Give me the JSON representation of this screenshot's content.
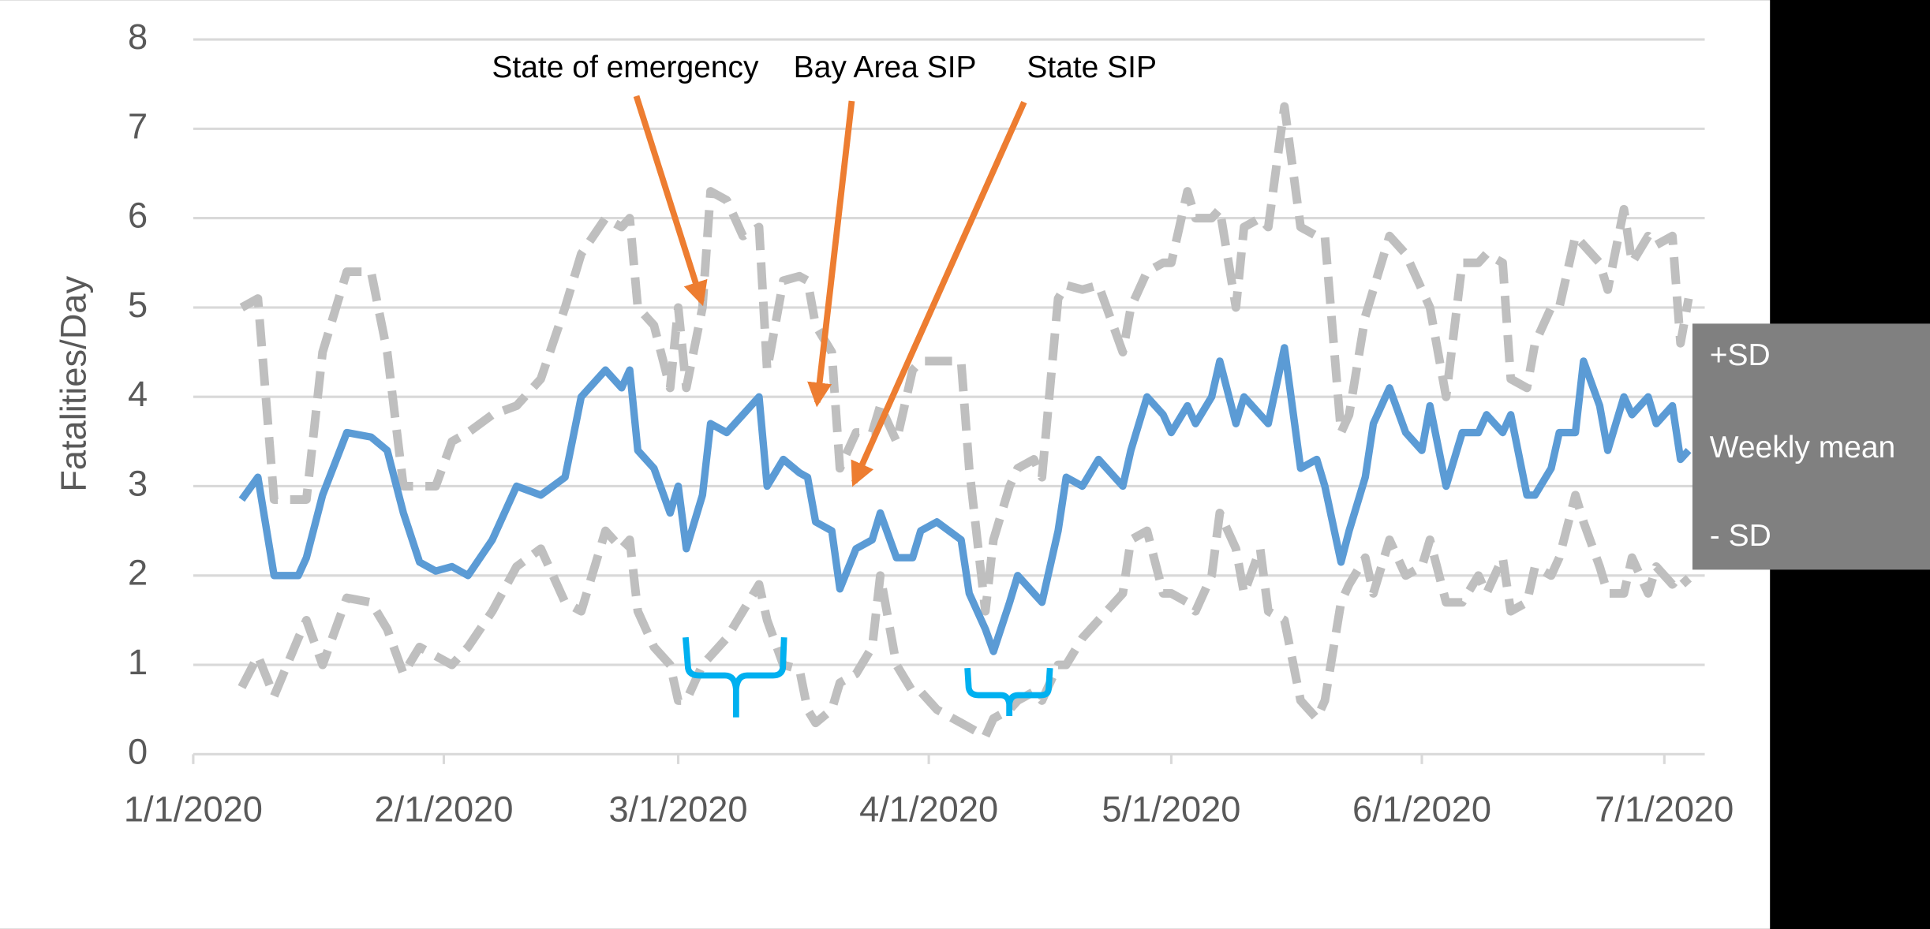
{
  "chart_data": {
    "type": "line",
    "y_label": "Fatalities/Day",
    "annotations": [
      "State of emergency",
      "Bay Area SIP",
      "State SIP"
    ],
    "xlim": [
      "2020-01-01",
      "2020-07-06"
    ],
    "xticks": [
      {
        "value": "2020-01-01",
        "label": "1/1/2020"
      },
      {
        "value": "2020-02-01",
        "label": "2/1/2020"
      },
      {
        "value": "2020-03-01",
        "label": "3/1/2020"
      },
      {
        "value": "2020-04-01",
        "label": "4/1/2020"
      },
      {
        "value": "2020-05-01",
        "label": "5/1/2020"
      },
      {
        "value": "2020-06-01",
        "label": "6/1/2020"
      },
      {
        "value": "2020-07-01",
        "label": "7/1/2020"
      }
    ],
    "ylim": [
      0,
      8
    ],
    "yticks": [
      0,
      1,
      2,
      3,
      4,
      5,
      6,
      7,
      8
    ],
    "grid": true,
    "legend": "right",
    "x": [
      "2020-01-07",
      "2020-01-09",
      "2020-01-11",
      "2020-01-14",
      "2020-01-15",
      "2020-01-17",
      "2020-01-20",
      "2020-01-23",
      "2020-01-25",
      "2020-01-27",
      "2020-01-29",
      "2020-01-31",
      "2020-02-02",
      "2020-02-04",
      "2020-02-07",
      "2020-02-10",
      "2020-02-13",
      "2020-02-16",
      "2020-02-18",
      "2020-02-21",
      "2020-02-23",
      "2020-02-24",
      "2020-02-25",
      "2020-02-27",
      "2020-02-29",
      "2020-03-01",
      "2020-03-02",
      "2020-03-04",
      "2020-03-05",
      "2020-03-07",
      "2020-03-09",
      "2020-03-11",
      "2020-03-12",
      "2020-03-14",
      "2020-03-16",
      "2020-03-17",
      "2020-03-18",
      "2020-03-20",
      "2020-03-21",
      "2020-03-23",
      "2020-03-25",
      "2020-03-26",
      "2020-03-28",
      "2020-03-30",
      "2020-03-31",
      "2020-04-02",
      "2020-04-05",
      "2020-04-06",
      "2020-04-08",
      "2020-04-09",
      "2020-04-11",
      "2020-04-12",
      "2020-04-14",
      "2020-04-15",
      "2020-04-17",
      "2020-04-18",
      "2020-04-20",
      "2020-04-22",
      "2020-04-25",
      "2020-04-26",
      "2020-04-28",
      "2020-04-30",
      "2020-05-01",
      "2020-05-03",
      "2020-05-04",
      "2020-05-06",
      "2020-05-07",
      "2020-05-09",
      "2020-05-10",
      "2020-05-12",
      "2020-05-13",
      "2020-05-15",
      "2020-05-17",
      "2020-05-19",
      "2020-05-20",
      "2020-05-22",
      "2020-05-23",
      "2020-05-25",
      "2020-05-26",
      "2020-05-28",
      "2020-05-30",
      "2020-06-01",
      "2020-06-02",
      "2020-06-04",
      "2020-06-06",
      "2020-06-08",
      "2020-06-09",
      "2020-06-11",
      "2020-06-12",
      "2020-06-14",
      "2020-06-15",
      "2020-06-17",
      "2020-06-18",
      "2020-06-20",
      "2020-06-21",
      "2020-06-23",
      "2020-06-24",
      "2020-06-26",
      "2020-06-27",
      "2020-06-29",
      "2020-06-30",
      "2020-07-02",
      "2020-07-03",
      "2020-07-04"
    ],
    "series": [
      {
        "name": "+SD",
        "color": "#bfbfbf",
        "dashed": true,
        "values": [
          5.0,
          5.1,
          2.85,
          2.85,
          2.85,
          4.5,
          5.4,
          5.4,
          4.5,
          3.0,
          3.0,
          3.0,
          3.5,
          3.6,
          3.8,
          3.9,
          4.2,
          5.0,
          5.6,
          6.0,
          5.9,
          6.0,
          5.0,
          4.8,
          4.1,
          5.0,
          4.1,
          5.0,
          6.3,
          6.2,
          5.8,
          5.9,
          4.3,
          5.3,
          5.35,
          5.3,
          4.8,
          4.5,
          3.2,
          3.6,
          3.6,
          3.9,
          3.5,
          4.3,
          4.4,
          4.4,
          4.4,
          3.2,
          1.6,
          2.4,
          3.0,
          3.2,
          3.3,
          3.1,
          5.1,
          5.25,
          5.2,
          5.25,
          4.5,
          5.0,
          5.4,
          5.5,
          5.5,
          6.3,
          6.0,
          6.0,
          6.1,
          5.0,
          5.9,
          6.0,
          5.9,
          7.25,
          5.9,
          5.8,
          5.8,
          3.6,
          3.8,
          4.9,
          5.2,
          5.8,
          5.6,
          5.2,
          5.0,
          4.0,
          5.5,
          5.5,
          5.6,
          5.5,
          4.2,
          4.1,
          4.6,
          5.0,
          5.0,
          5.8,
          5.7,
          5.5,
          5.2,
          6.1,
          5.5,
          5.8,
          5.7,
          5.8,
          4.6,
          5.1
        ]
      },
      {
        "name": "Weekly mean",
        "color": "#5b9bd5",
        "dashed": false,
        "values": [
          2.85,
          3.1,
          2.0,
          2.0,
          2.2,
          2.9,
          3.6,
          3.55,
          3.4,
          2.7,
          2.15,
          2.05,
          2.1,
          2.0,
          2.4,
          3.0,
          2.9,
          3.1,
          4.0,
          4.3,
          4.1,
          4.3,
          3.4,
          3.2,
          2.7,
          3.0,
          2.3,
          2.9,
          3.7,
          3.6,
          3.8,
          4.0,
          3.0,
          3.3,
          3.15,
          3.1,
          2.6,
          2.5,
          1.85,
          2.3,
          2.4,
          2.7,
          2.2,
          2.2,
          2.5,
          2.6,
          2.4,
          1.8,
          1.4,
          1.15,
          1.7,
          2.0,
          1.8,
          1.7,
          2.5,
          3.1,
          3.0,
          3.3,
          3.0,
          3.4,
          4.0,
          3.8,
          3.6,
          3.9,
          3.7,
          4.0,
          4.4,
          3.7,
          4.0,
          3.8,
          3.7,
          4.55,
          3.2,
          3.3,
          3.0,
          2.15,
          2.5,
          3.1,
          3.7,
          4.1,
          3.6,
          3.4,
          3.9,
          3.0,
          3.6,
          3.6,
          3.8,
          3.6,
          3.8,
          2.9,
          2.9,
          3.2,
          3.6,
          3.6,
          4.4,
          3.9,
          3.4,
          4.0,
          3.8,
          4.0,
          3.7,
          3.9,
          3.3,
          3.4
        ]
      },
      {
        "name": "- SD",
        "color": "#bfbfbf",
        "dashed": true,
        "values": [
          0.75,
          1.1,
          0.65,
          1.3,
          1.5,
          1.0,
          1.75,
          1.7,
          1.4,
          0.9,
          1.2,
          1.1,
          1.0,
          1.2,
          1.6,
          2.1,
          2.3,
          1.7,
          1.6,
          2.5,
          2.3,
          2.4,
          1.6,
          1.2,
          1.0,
          0.6,
          0.6,
          1.0,
          1.1,
          1.3,
          1.6,
          1.9,
          1.5,
          1.0,
          0.95,
          0.5,
          0.35,
          0.5,
          0.8,
          0.9,
          1.2,
          2.0,
          1.0,
          0.7,
          0.7,
          0.5,
          0.35,
          0.3,
          0.2,
          0.4,
          0.5,
          0.6,
          0.7,
          0.6,
          1.0,
          1.0,
          1.3,
          1.5,
          1.8,
          2.4,
          2.5,
          1.8,
          1.8,
          1.7,
          1.6,
          2.0,
          2.7,
          2.3,
          1.8,
          2.3,
          1.6,
          1.5,
          0.6,
          0.4,
          0.6,
          1.7,
          1.9,
          2.2,
          1.8,
          2.4,
          2.0,
          2.1,
          2.4,
          1.7,
          1.7,
          2.0,
          1.8,
          2.2,
          1.6,
          1.7,
          2.1,
          2.0,
          2.2,
          2.9,
          2.6,
          2.1,
          1.8,
          1.8,
          2.2,
          1.8,
          2.1,
          1.9,
          2.0,
          1.9
        ]
      }
    ]
  }
}
